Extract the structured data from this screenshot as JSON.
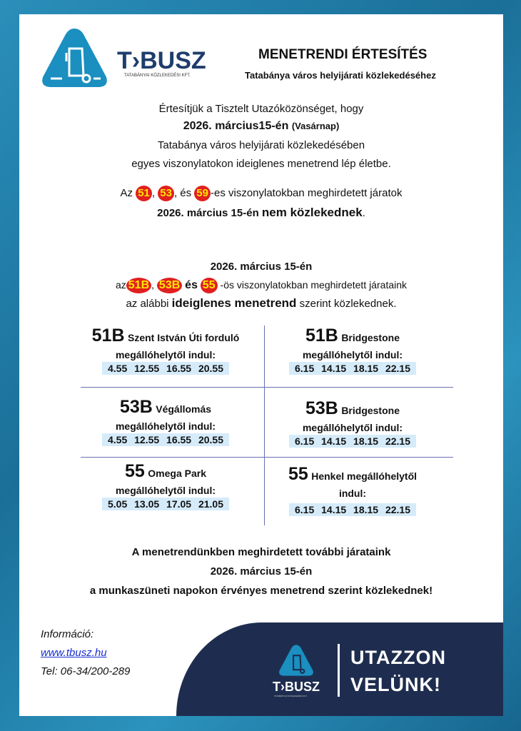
{
  "header": {
    "logo_text": "T›BUSZ",
    "logo_subtitle": "TATABÁNYAI KÖZLEKEDÉSI KFT.",
    "title": "MENETRENDI ÉRTESÍTÉS",
    "subtitle": "Tatabánya város helyijárati közlekedéséhez"
  },
  "intro": {
    "line1": "Értesítjük a Tisztelt Utazóközönséget, hogy",
    "date": "2026. március15-én",
    "day": "(Vasárnap)",
    "line3": "Tatabánya város helyijárati közlekedésében",
    "line4": "egyes viszonylatokon ideiglenes menetrend lép életbe."
  },
  "cancel": {
    "prefix": "Az",
    "routes": [
      "51",
      "53",
      "59"
    ],
    "sep1": ",",
    "sep2": ", és",
    "suffix": "-es viszonylatokban meghirdetett járatok",
    "date": "2026. március 15-én",
    "emph": "nem közlekednek",
    "end": "."
  },
  "temp": {
    "date": "2026. március 15-én",
    "prefix": "az",
    "routes": [
      "51B",
      "53B",
      "55"
    ],
    "sep1": ",",
    "sep2": "és",
    "suffix": "-ös viszonylatokban meghirdetett járataink",
    "line3a": "az alábbi",
    "line3b": "ideiglenes menetrend",
    "line3c": "szerint közlekednek."
  },
  "schedule": [
    {
      "route": "51B",
      "stop": "Szent István Úti forduló",
      "label": "megállóhelytől indul:",
      "times": "4.55 12.55 16.55 20.55"
    },
    {
      "route": "51B",
      "stop": "Bridgestone",
      "label": "megállóhelytől indul:",
      "times": "6.15 14.15 18.15 22.15"
    },
    {
      "route": "53B",
      "stop": "Végállomás",
      "label": "megállóhelytől indul:",
      "times": "4.55 12.55 16.55 20.55"
    },
    {
      "route": "53B",
      "stop": "Bridgestone",
      "label": "megállóhelytől indul:",
      "times": "6.15 14.15 18.15 22.15"
    },
    {
      "route": "55",
      "stop": "Omega Park",
      "label": "megállóhelytől indul:",
      "times": "5.05 13.05 17.05 21.05"
    },
    {
      "route": "55",
      "stop": "Henkel megállóhelytől",
      "label": "indul:",
      "times": "6.15 14.15 18.15 22.15"
    }
  ],
  "closing": {
    "line1": "A menetrendünkben meghirdetett további járataink",
    "line2": "2026. március 15-én",
    "line3": "a munkaszüneti napokon érvényes menetrend szerint közlekednek!"
  },
  "contact": {
    "label": "Információ:",
    "website": "www.tbusz.hu",
    "phone": "Tel: 06-34/200-289"
  },
  "footer": {
    "logo_text": "T›BUSZ",
    "logo_subtitle": "TATABÁNYAI KÖZLEKEDÉSI KFT.",
    "slogan1": "UTAZZON",
    "slogan2": "VELÜNK!"
  },
  "colors": {
    "brand_blue": "#1a8fc0",
    "navy": "#1e2d4f",
    "route_badge": "#e0201f",
    "badge_text": "#ffe600",
    "times_bg": "#d5ebfa"
  }
}
